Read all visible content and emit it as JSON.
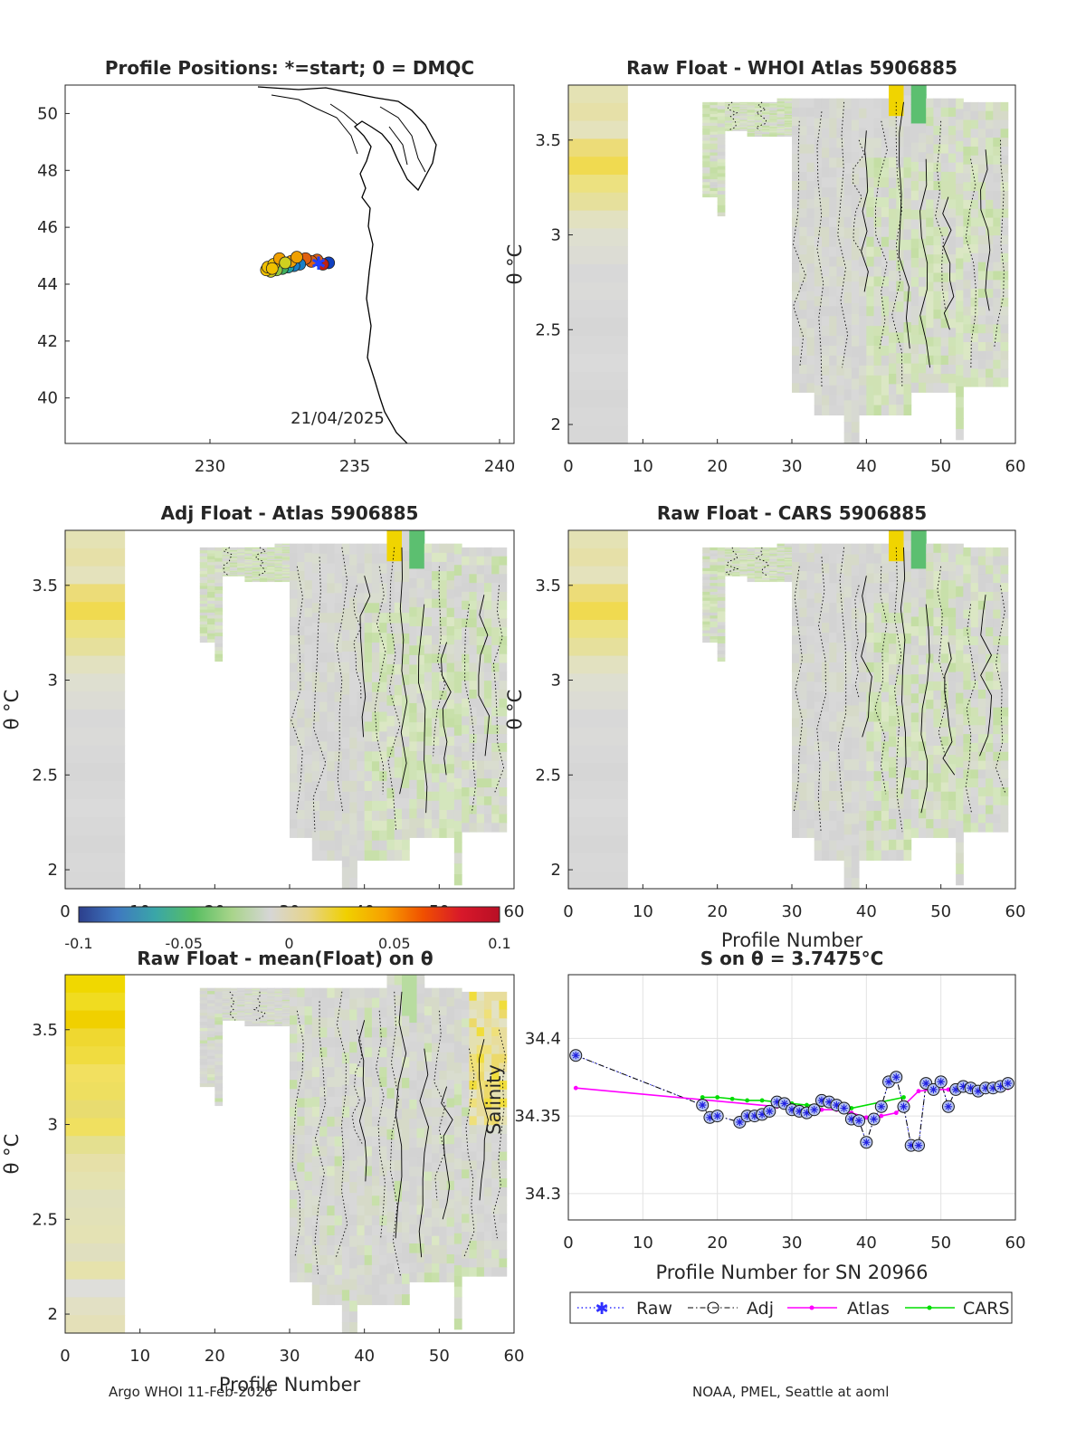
{
  "chart_data": [
    {
      "type": "scatter",
      "title": "Profile Positions: *=start; 0 = DMQC",
      "xlim": [
        225,
        240.5
      ],
      "ylim": [
        38.4,
        51
      ],
      "xticks": [
        "230",
        "235",
        "240"
      ],
      "yticks": [
        "40",
        "42",
        "44",
        "46",
        "48",
        "50"
      ],
      "annotation": "21/04/2025",
      "positions": [
        {
          "lon": 234.1,
          "lat": 44.75,
          "c": 0.1
        },
        {
          "lon": 233.9,
          "lat": 44.7,
          "c": 0.95
        },
        {
          "lon": 233.7,
          "lat": 44.85,
          "c": 0.9
        },
        {
          "lon": 233.5,
          "lat": 44.8,
          "c": 0.88
        },
        {
          "lon": 233.3,
          "lat": 44.9,
          "c": 0.92
        },
        {
          "lon": 233.1,
          "lat": 44.7,
          "c": 0.15
        },
        {
          "lon": 232.9,
          "lat": 44.65,
          "c": 0.2
        },
        {
          "lon": 232.7,
          "lat": 44.6,
          "c": 0.3
        },
        {
          "lon": 232.5,
          "lat": 44.55,
          "c": 0.4
        },
        {
          "lon": 232.3,
          "lat": 44.5,
          "c": 0.5
        },
        {
          "lon": 232.1,
          "lat": 44.45,
          "c": 0.6
        },
        {
          "lon": 231.95,
          "lat": 44.5,
          "c": 0.7
        },
        {
          "lon": 232.0,
          "lat": 44.6,
          "c": 0.72
        },
        {
          "lon": 232.2,
          "lat": 44.7,
          "c": 0.74
        },
        {
          "lon": 232.4,
          "lat": 44.9,
          "c": 0.76
        },
        {
          "lon": 232.8,
          "lat": 44.8,
          "c": 0.78
        },
        {
          "lon": 233.0,
          "lat": 44.95,
          "c": 0.8
        },
        {
          "lon": 232.6,
          "lat": 44.75,
          "c": 0.62
        },
        {
          "lon": 232.15,
          "lat": 44.55,
          "c": 0.66
        }
      ]
    },
    {
      "type": "heatmap",
      "title": "Raw Float - WHOI Atlas  5906885",
      "xlim": [
        0,
        60
      ],
      "ylim": [
        1.9,
        3.79
      ],
      "xticks": [
        "0",
        "10",
        "20",
        "30",
        "40",
        "50",
        "60"
      ],
      "yticks": [
        "2",
        "2.5",
        "3",
        "3.5"
      ],
      "ylabel": "θ °C"
    },
    {
      "type": "heatmap",
      "title": "Adj Float - Atlas  5906885",
      "xlim": [
        0,
        60
      ],
      "ylim": [
        1.9,
        3.79
      ],
      "xticks": [
        "0",
        "10",
        "20",
        "30",
        "40",
        "50",
        "60"
      ],
      "yticks": [
        "2",
        "2.5",
        "3",
        "3.5"
      ],
      "ylabel": "θ °C"
    },
    {
      "type": "heatmap",
      "title": "Raw Float - CARS  5906885",
      "xlim": [
        0,
        60
      ],
      "ylim": [
        1.9,
        3.79
      ],
      "xticks": [
        "0",
        "10",
        "20",
        "30",
        "40",
        "50",
        "60"
      ],
      "yticks": [
        "2",
        "2.5",
        "3",
        "3.5"
      ],
      "xlabel": "Profile Number",
      "ylabel": "θ °C"
    },
    {
      "type": "heatmap",
      "title": "Raw Float - mean(Float) on θ",
      "xlim": [
        0,
        60
      ],
      "ylim": [
        1.9,
        3.79
      ],
      "xticks": [
        "0",
        "10",
        "20",
        "30",
        "40",
        "50",
        "60"
      ],
      "yticks": [
        "2",
        "2.5",
        "3",
        "3.5"
      ],
      "xlabel": "Profile Number",
      "ylabel": "θ °C",
      "annotation": "Salinity"
    },
    {
      "type": "line",
      "title": "S on θ = 3.7475°C",
      "xlabel": "Profile Number for SN 20966",
      "xlim": [
        0,
        60
      ],
      "ylim": [
        34.283,
        34.441
      ],
      "xticks": [
        "0",
        "10",
        "20",
        "30",
        "40",
        "50",
        "60"
      ],
      "yticks": [
        "34.3",
        "34.35",
        "34.4"
      ],
      "legend": [
        "Raw",
        "Adj",
        "Atlas",
        "CARS"
      ],
      "series": [
        {
          "name": "Adj",
          "x": [
            1,
            18,
            19,
            20,
            23,
            24,
            25,
            26,
            27,
            28,
            29,
            30,
            31,
            32,
            33,
            34,
            35,
            36,
            37,
            38,
            39,
            40,
            41,
            42,
            43,
            44,
            45,
            46,
            47,
            48,
            49,
            50,
            51,
            52,
            53,
            54,
            55,
            56,
            57,
            58,
            59
          ],
          "y": [
            34.389,
            34.357,
            34.349,
            34.35,
            34.346,
            34.35,
            34.35,
            34.351,
            34.353,
            34.359,
            34.358,
            34.354,
            34.353,
            34.352,
            34.354,
            34.36,
            34.359,
            34.357,
            34.355,
            34.348,
            34.347,
            34.333,
            34.348,
            34.356,
            34.372,
            34.375,
            34.356,
            34.331,
            34.331,
            34.371,
            34.367,
            34.372,
            34.356,
            34.367,
            34.369,
            34.368,
            34.366,
            34.368,
            34.368,
            34.369,
            34.371
          ]
        },
        {
          "name": "Atlas",
          "x": [
            1,
            28,
            30,
            32,
            34,
            36,
            38,
            40,
            42,
            44,
            47,
            49,
            51,
            53,
            55,
            57,
            59
          ],
          "y": [
            34.368,
            34.356,
            34.356,
            34.355,
            34.354,
            34.354,
            34.352,
            34.349,
            34.35,
            34.352,
            34.366,
            34.367,
            34.367,
            34.367,
            34.367,
            34.367,
            34.368
          ],
          "color": "#ff00ff"
        },
        {
          "name": "CARS",
          "x": [
            18,
            20,
            22,
            24,
            26,
            28,
            30,
            32,
            34,
            36,
            38,
            45
          ],
          "y": [
            34.362,
            34.362,
            34.361,
            34.36,
            34.36,
            34.359,
            34.358,
            34.357,
            34.357,
            34.356,
            34.355,
            34.362
          ],
          "color": "#00dd00"
        }
      ]
    }
  ],
  "colorbar": {
    "ticks": [
      "-0.1",
      "-0.05",
      "0",
      "0.05",
      "0.1"
    ],
    "colors": [
      "#2c3e8c",
      "#3f78c0",
      "#3aa6a8",
      "#57be62",
      "#a8d48a",
      "#d6d6d6",
      "#e6d48a",
      "#f0d000",
      "#f7a000",
      "#f05000",
      "#d8182a",
      "#b80f25"
    ]
  },
  "footer": {
    "left": "Argo WHOI 11-Feb-2026",
    "right": "NOAA, PMEL, Seattle at aoml"
  }
}
